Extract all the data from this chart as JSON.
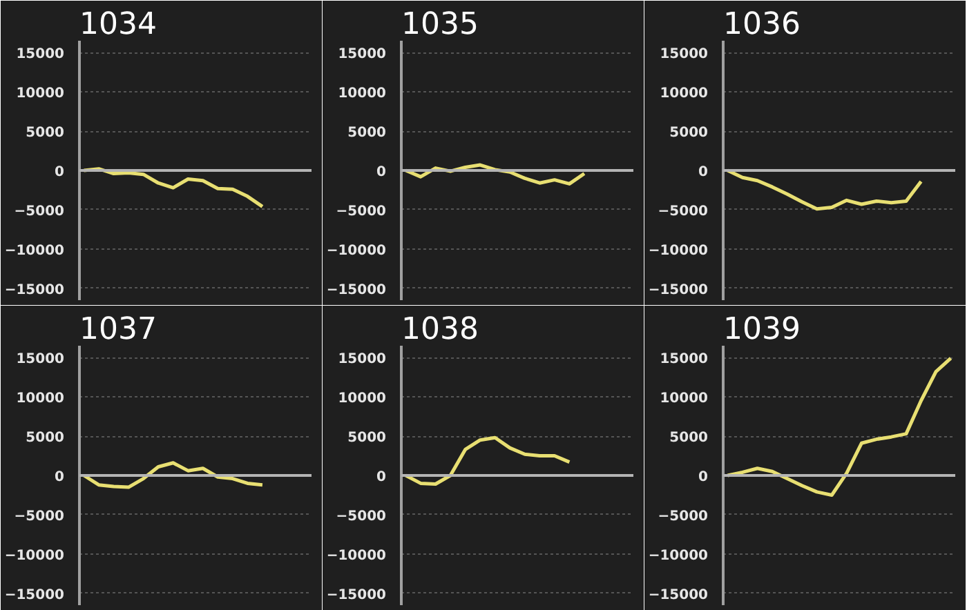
{
  "chart_data": [
    {
      "type": "line",
      "title": "1034",
      "categories": [
        null,
        null,
        null,
        null,
        null,
        null,
        null,
        null,
        null,
        null,
        null,
        null,
        null,
        null,
        null,
        null
      ],
      "values": [
        0,
        200,
        -400,
        -300,
        -500,
        -1600,
        -2200,
        -1100,
        -1300,
        -2300,
        -2400,
        -3300,
        -4600,
        null,
        null,
        null
      ],
      "color": "#e8df72",
      "ylim": [
        -16500,
        16500
      ],
      "yticks": [
        -15000,
        -10000,
        -5000,
        0,
        5000,
        10000,
        15000
      ],
      "grid": "y",
      "tick_labels": "y",
      "ref_lines": [
        {
          "axis": "y",
          "value": 0,
          "color": "#b4b4b4"
        }
      ]
    },
    {
      "type": "line",
      "title": "1035",
      "categories": [
        null,
        null,
        null,
        null,
        null,
        null,
        null,
        null,
        null,
        null,
        null,
        null,
        null,
        null,
        null,
        null
      ],
      "values": [
        0,
        -800,
        300,
        -100,
        400,
        700,
        100,
        -200,
        -1000,
        -1600,
        -1200,
        -1700,
        -400,
        null,
        null,
        null
      ],
      "color": "#e8df72",
      "ylim": [
        -16500,
        16500
      ],
      "yticks": [
        -15000,
        -10000,
        -5000,
        0,
        5000,
        10000,
        15000
      ],
      "grid": "y",
      "tick_labels": "y",
      "ref_lines": [
        {
          "axis": "y",
          "value": 0,
          "color": "#b4b4b4"
        }
      ]
    },
    {
      "type": "line",
      "title": "1036",
      "categories": [
        null,
        null,
        null,
        null,
        null,
        null,
        null,
        null,
        null,
        null,
        null,
        null,
        null,
        null,
        null,
        null
      ],
      "values": [
        0,
        -900,
        -1300,
        -2100,
        -3000,
        -4000,
        -4900,
        -4700,
        -3800,
        -4300,
        -3900,
        -4100,
        -3900,
        -1400,
        null,
        null
      ],
      "color": "#e8df72",
      "ylim": [
        -16500,
        16500
      ],
      "yticks": [
        -15000,
        -10000,
        -5000,
        0,
        5000,
        10000,
        15000
      ],
      "grid": "y",
      "tick_labels": "y",
      "ref_lines": [
        {
          "axis": "y",
          "value": 0,
          "color": "#b4b4b4"
        }
      ]
    },
    {
      "type": "line",
      "title": "1037",
      "categories": [
        null,
        null,
        null,
        null,
        null,
        null,
        null,
        null,
        null,
        null,
        null,
        null,
        null,
        null,
        null,
        null
      ],
      "values": [
        0,
        -1200,
        -1400,
        -1500,
        -400,
        1100,
        1600,
        600,
        900,
        -200,
        -400,
        -1000,
        -1200,
        null,
        null,
        null
      ],
      "color": "#e8df72",
      "ylim": [
        -16500,
        16500
      ],
      "yticks": [
        -15000,
        -10000,
        -5000,
        0,
        5000,
        10000,
        15000
      ],
      "grid": "y",
      "tick_labels": "y",
      "ref_lines": [
        {
          "axis": "y",
          "value": 0,
          "color": "#b4b4b4"
        }
      ]
    },
    {
      "type": "line",
      "title": "1038",
      "categories": [
        null,
        null,
        null,
        null,
        null,
        null,
        null,
        null,
        null,
        null,
        null,
        null,
        null,
        null,
        null,
        null
      ],
      "values": [
        0,
        -1000,
        -1100,
        0,
        3300,
        4500,
        4800,
        3500,
        2700,
        2500,
        2500,
        1700,
        null,
        null,
        null,
        null
      ],
      "color": "#e8df72",
      "ylim": [
        -16500,
        16500
      ],
      "yticks": [
        -15000,
        -10000,
        -5000,
        0,
        5000,
        10000,
        15000
      ],
      "grid": "y",
      "tick_labels": "y",
      "ref_lines": [
        {
          "axis": "y",
          "value": 0,
          "color": "#b4b4b4"
        }
      ]
    },
    {
      "type": "line",
      "title": "1039",
      "categories": [
        null,
        null,
        null,
        null,
        null,
        null,
        null,
        null,
        null,
        null,
        null,
        null,
        null,
        null,
        null,
        null
      ],
      "values": [
        0,
        400,
        900,
        500,
        -400,
        -1300,
        -2100,
        -2500,
        300,
        4100,
        4600,
        4900,
        5300,
        9500,
        13200,
        14900
      ],
      "color": "#e8df72",
      "ylim": [
        -16500,
        16500
      ],
      "yticks": [
        -15000,
        -10000,
        -5000,
        0,
        5000,
        10000,
        15000
      ],
      "grid": "y",
      "tick_labels": "y",
      "ref_lines": [
        {
          "axis": "y",
          "value": 0,
          "color": "#b4b4b4"
        }
      ]
    }
  ]
}
